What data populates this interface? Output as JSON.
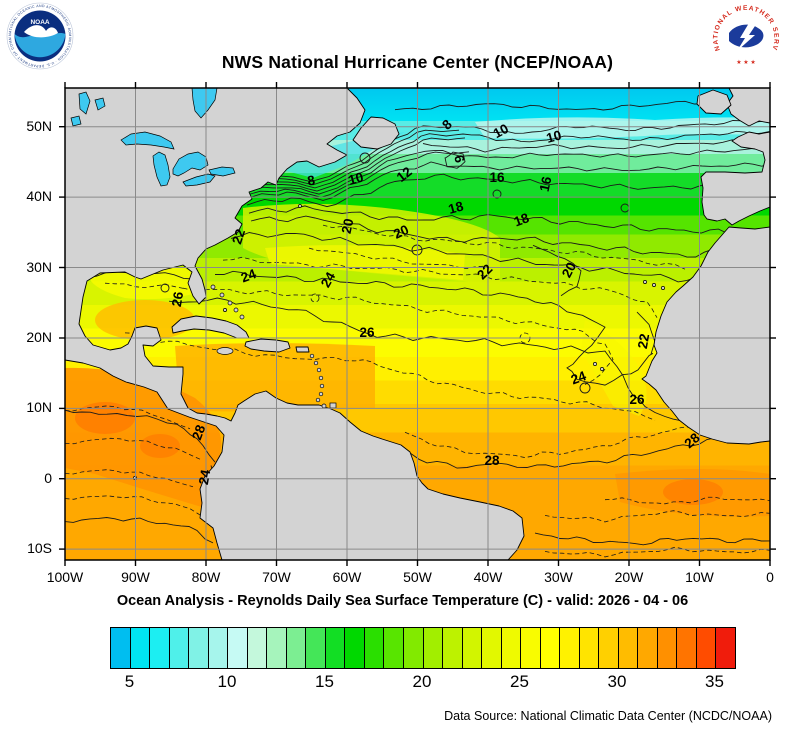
{
  "header": {
    "title": "NWS National Hurricane Center (NCEP/NOAA)"
  },
  "logos": {
    "noaa": {
      "acronym": "NOAA",
      "ring_text": "NATIONAL OCEANIC AND ATMOSPHERIC ADMINISTRATION · U.S. DEPARTMENT OF COMMERCE"
    },
    "nws": {
      "ring_text": "NATIONAL WEATHER SERVICE",
      "stars": "★ ★ ★"
    }
  },
  "map": {
    "lat_labels": [
      "50N",
      "40N",
      "30N",
      "20N",
      "10N",
      "0",
      "10S"
    ],
    "lon_labels": [
      "100W",
      "90W",
      "80W",
      "70W",
      "60W",
      "50W",
      "40W",
      "30W",
      "20W",
      "10W",
      "0"
    ],
    "contour_labels": [
      8,
      10,
      10,
      6,
      8,
      10,
      12,
      16,
      16,
      18,
      18,
      22,
      20,
      20,
      20,
      22,
      22,
      24,
      24,
      26,
      24,
      26,
      26,
      28,
      24,
      28,
      28
    ],
    "colors": {
      "land": "#D3D3D3",
      "lake": "#3EC9F0",
      "grid": "#8A8A8A",
      "coast": "#000000",
      "contour": "#1A1A1A"
    }
  },
  "footer": {
    "subtitle": "Ocean Analysis - Reynolds Daily Sea Surface Temperature (C) - valid: 2026 - 04 - 06",
    "data_source": "Data Source: National Climatic Data Center (NCDC/NOAA)"
  },
  "colorbar": {
    "labels": [
      "5",
      "10",
      "15",
      "20",
      "25",
      "30",
      "35"
    ],
    "tick_values": [
      5,
      10,
      15,
      20,
      25,
      30,
      35
    ],
    "min": 4,
    "max": 36,
    "colors": [
      "#00BEF0",
      "#00E4F2",
      "#1CEEF2",
      "#4FF0EA",
      "#80F2E6",
      "#A6F5EC",
      "#C6FAF4",
      "#C4F8DC",
      "#A6F4BC",
      "#7CEE92",
      "#44E658",
      "#12DE24",
      "#00D800",
      "#2ADF00",
      "#58E500",
      "#82EA00",
      "#A2EE00",
      "#BDF200",
      "#D2F500",
      "#E2F800",
      "#EFFA00",
      "#F9FC00",
      "#FFFF00",
      "#FFF200",
      "#FFE400",
      "#FFD000",
      "#FFBC00",
      "#FFA800",
      "#FF9000",
      "#FF7400",
      "#FF4C00",
      "#F01C0C"
    ]
  }
}
